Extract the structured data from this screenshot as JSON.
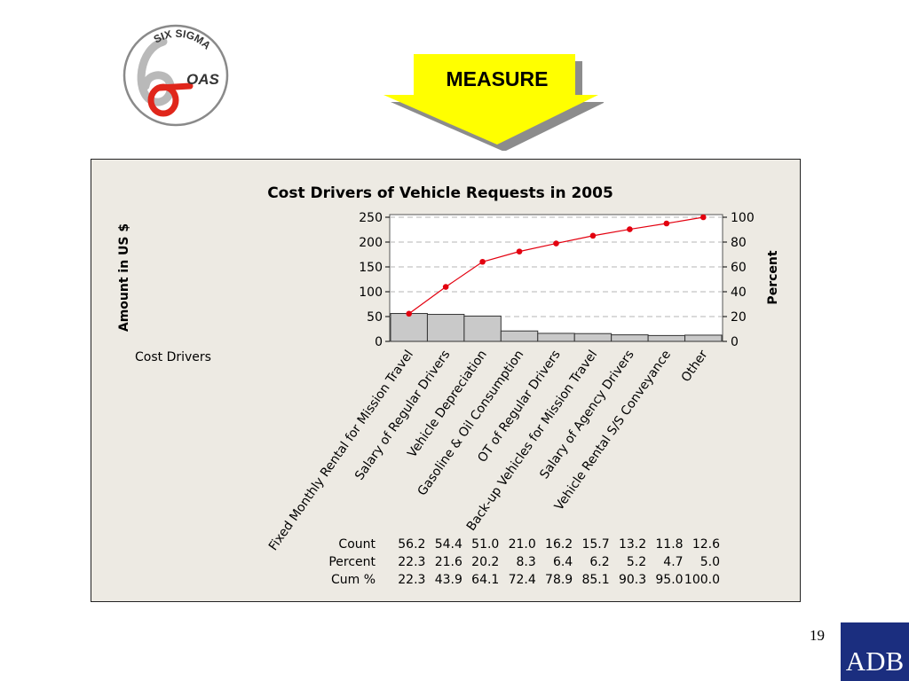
{
  "logo": {
    "top_text": "SIX SIGMA",
    "side_text": "OAS"
  },
  "banner": {
    "label": "MEASURE"
  },
  "page_number": "19",
  "brand": "ADB",
  "colors": {
    "bar_fill": "#c9c9c9",
    "cum_line": "#e3000f",
    "banner_fill": "#ffff00",
    "chart_bg": "#edeae3",
    "adb_blue": "#1b2e7f"
  },
  "chart_data": {
    "type": "bar",
    "subtype": "pareto",
    "title": "Cost Drivers of Vehicle Requests in 2005",
    "ylabel": "Amount in US $",
    "y2label": "Percent",
    "xlabel": "Cost Drivers",
    "ylim": [
      0,
      250
    ],
    "y2lim": [
      0,
      100
    ],
    "yticks": [
      "0",
      "50",
      "100",
      "150",
      "200",
      "250"
    ],
    "y2ticks": [
      "0",
      "20",
      "40",
      "60",
      "80",
      "100"
    ],
    "grid": true,
    "categories": [
      "Fixed Monthly Rental for Mission Travel",
      "Salary of Regular Drivers",
      "Vehicle Depreciation",
      "Gasoline & Oil Consumption",
      "OT of Regular Drivers",
      "Back-up Vehicles for Mission Travel",
      "Salary of Agency Drivers",
      "Vehicle Rental S/S Conveyance",
      "Other"
    ],
    "values": [
      56.2,
      54.4,
      51.0,
      21.0,
      16.2,
      15.7,
      13.2,
      11.8,
      12.6
    ],
    "cum_percent": [
      22.3,
      43.9,
      64.1,
      72.4,
      78.9,
      85.1,
      90.3,
      95.0,
      100.0
    ],
    "table": {
      "row_labels": [
        "Count",
        "Percent",
        "Cum %"
      ],
      "rows": [
        [
          "56.2",
          "54.4",
          "51.0",
          "21.0",
          "16.2",
          "15.7",
          "13.2",
          "11.8",
          "12.6"
        ],
        [
          "22.3",
          "21.6",
          "20.2",
          "8.3",
          "6.4",
          "6.2",
          "5.2",
          "4.7",
          "5.0"
        ],
        [
          "22.3",
          "43.9",
          "64.1",
          "72.4",
          "78.9",
          "85.1",
          "90.3",
          "95.0",
          "100.0"
        ]
      ]
    }
  }
}
